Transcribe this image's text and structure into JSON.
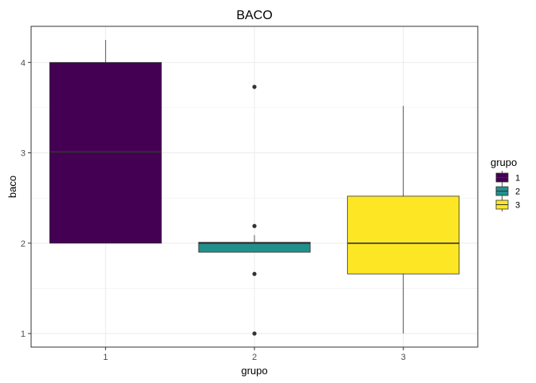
{
  "chart_data": {
    "type": "box",
    "title": "BACO",
    "xlabel": "grupo",
    "ylabel": "baco",
    "ylim": [
      0.85,
      4.4
    ],
    "yticks": [
      1,
      2,
      3,
      4
    ],
    "categories": [
      "1",
      "2",
      "3"
    ],
    "grid": true,
    "legend": {
      "title": "grupo",
      "placement": "right",
      "entries": [
        "1",
        "2",
        "3"
      ]
    },
    "boxes": [
      {
        "group": "1",
        "color": "#440154",
        "whisker_low": 2.0,
        "q1": 2.0,
        "median": 3.01,
        "q3": 4.0,
        "whisker_high": 4.25,
        "outliers": []
      },
      {
        "group": "2",
        "color": "#21908C",
        "whisker_low": 1.9,
        "q1": 1.9,
        "median": 2.0,
        "q3": 2.01,
        "whisker_high": 2.09,
        "outliers": [
          3.73,
          2.19,
          1.66,
          1.0
        ]
      },
      {
        "group": "3",
        "color": "#FDE725",
        "whisker_low": 1.0,
        "q1": 1.66,
        "median": 2.0,
        "q3": 2.52,
        "whisker_high": 3.52,
        "outliers": []
      }
    ]
  }
}
